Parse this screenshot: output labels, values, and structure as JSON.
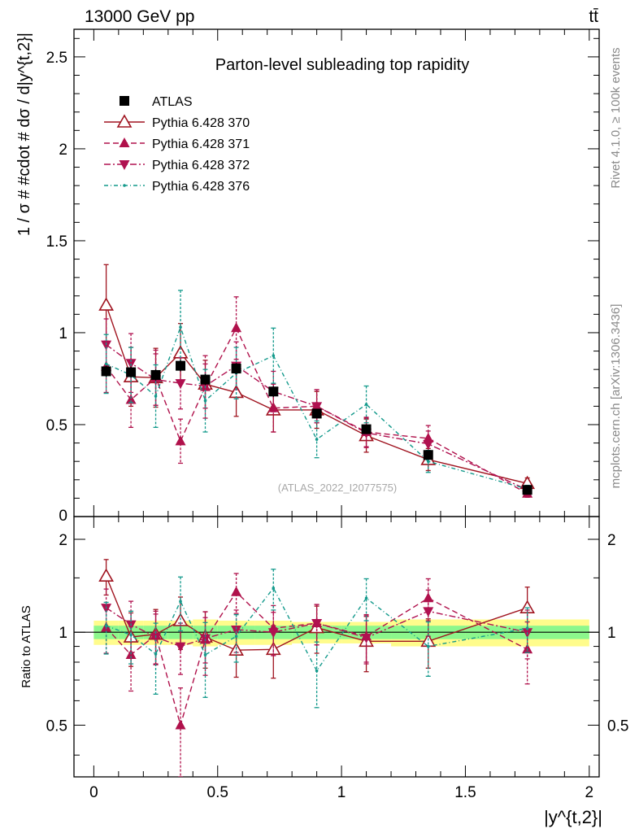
{
  "header": {
    "energy_label": "13000 GeV pp",
    "process_label": "tt̄"
  },
  "side_labels": {
    "rivet": "Rivet 4.1.0, ≥ 100k events",
    "mcplots": "mcplots.cern.ch [arXiv:1306.3436]"
  },
  "chart_data": [
    {
      "type": "scatter",
      "panel": "main",
      "title": "Parton-level subleading top rapidity",
      "ylabel": "1 / σ # #cdot # dσ / d|y^{t,2}|",
      "xlabel": "|y^{t,2}|",
      "xlim": [
        -0.08,
        2.04
      ],
      "ylim": [
        0,
        2.65
      ],
      "yticks": [
        0.5,
        1,
        1.5,
        2,
        2.5
      ],
      "ytick_labels": [
        "0.5",
        "1",
        "1.5",
        "2",
        "2.5"
      ],
      "y_zero_label": "0",
      "analysis_id": "(ATLAS_2022_I2077575)",
      "legend_position": "top-left",
      "x": [
        0.05,
        0.15,
        0.25,
        0.35,
        0.45,
        0.575,
        0.725,
        0.9,
        1.1,
        1.35,
        1.75
      ],
      "bin_edges": [
        0.0,
        0.1,
        0.2,
        0.3,
        0.4,
        0.5,
        0.65,
        0.8,
        1.0,
        1.2,
        1.5,
        2.0
      ],
      "series": [
        {
          "name": "ATLAS",
          "style": "data",
          "color": "#000000",
          "values": [
            0.79,
            0.785,
            0.77,
            0.82,
            0.745,
            0.805,
            0.68,
            0.56,
            0.475,
            0.335,
            0.145
          ],
          "errors": [
            0.03,
            0.03,
            0.03,
            0.03,
            0.03,
            0.03,
            0.03,
            0.025,
            0.025,
            0.02,
            0.015
          ]
        },
        {
          "name": "Pythia 6.428 370",
          "style": "line-open-triangle",
          "color": "#a01420",
          "values": [
            1.15,
            0.76,
            0.755,
            0.89,
            0.72,
            0.675,
            0.58,
            0.58,
            0.44,
            0.31,
            0.18
          ],
          "errors": [
            0.22,
            0.16,
            0.16,
            0.16,
            0.13,
            0.13,
            0.12,
            0.1,
            0.09,
            0.06,
            0.03
          ]
        },
        {
          "name": "Pythia 6.428 371",
          "style": "dashed-filled-triangle",
          "color": "#b0114b",
          "values": [
            0.815,
            0.635,
            0.755,
            0.41,
            0.705,
            1.025,
            0.59,
            0.6,
            0.46,
            0.425,
            0.125
          ],
          "errors": [
            0.14,
            0.15,
            0.15,
            0.12,
            0.17,
            0.17,
            0.13,
            0.09,
            0.08,
            0.07,
            0.02
          ]
        },
        {
          "name": "Pythia 6.428 372",
          "style": "dashdot-down-triangle",
          "color": "#b01150",
          "values": [
            0.935,
            0.835,
            0.745,
            0.725,
            0.71,
            0.82,
            0.68,
            0.6,
            0.455,
            0.395,
            0.145
          ],
          "errors": [
            0.14,
            0.16,
            0.14,
            0.14,
            0.12,
            0.13,
            0.11,
            0.09,
            0.08,
            0.07,
            0.02
          ]
        },
        {
          "name": "Pythia 6.428 376",
          "style": "dashdot-teal",
          "color": "#149a8c",
          "values": [
            0.83,
            0.77,
            0.655,
            1.03,
            0.63,
            0.78,
            0.875,
            0.42,
            0.61,
            0.3,
            0.15
          ],
          "errors": [
            0.16,
            0.15,
            0.17,
            0.2,
            0.17,
            0.14,
            0.15,
            0.1,
            0.1,
            0.06,
            0.02
          ]
        }
      ]
    },
    {
      "type": "scatter",
      "panel": "ratio",
      "ylabel": "Ratio to ATLAS",
      "xlabel": "|y^{t,2}|",
      "xlim": [
        -0.08,
        2.04
      ],
      "ylim": [
        0.34,
        2.37
      ],
      "yticks": [
        0.5,
        1,
        2
      ],
      "ytick_labels": [
        "0.5",
        "1",
        "2"
      ],
      "xticks": [
        0,
        0.5,
        1,
        1.5,
        2
      ],
      "xtick_labels": [
        "0",
        "0.5",
        "1",
        "1.5",
        "2"
      ],
      "x": [
        0.05,
        0.15,
        0.25,
        0.35,
        0.45,
        0.575,
        0.725,
        0.9,
        1.1,
        1.35,
        1.75
      ],
      "bin_edges": [
        0.0,
        0.1,
        0.2,
        0.3,
        0.4,
        0.5,
        0.65,
        0.8,
        1.0,
        1.2,
        1.5,
        2.0
      ],
      "band_stat": [
        0.05,
        0.05,
        0.05,
        0.05,
        0.05,
        0.05,
        0.05,
        0.05,
        0.05,
        0.05,
        0.05
      ],
      "band_total": [
        0.09,
        0.09,
        0.09,
        0.09,
        0.1,
        0.09,
        0.09,
        0.08,
        0.08,
        0.1,
        0.1
      ],
      "series": [
        {
          "name": "Pythia 6.428 370",
          "values": [
            1.52,
            0.965,
            0.985,
            1.09,
            0.965,
            0.875,
            0.88,
            1.035,
            0.935,
            0.935,
            1.2
          ],
          "errors": [
            0.2,
            0.19,
            0.2,
            0.21,
            0.2,
            0.16,
            0.17,
            0.18,
            0.19,
            0.17,
            0.2
          ]
        },
        {
          "name": "Pythia 6.428 371",
          "values": [
            1.035,
            0.845,
            0.98,
            0.5,
            0.945,
            1.35,
            1.03,
            1.07,
            0.97,
            1.29,
            0.88
          ],
          "errors": [
            0.18,
            0.2,
            0.19,
            0.16,
            0.22,
            0.2,
            0.19,
            0.16,
            0.17,
            0.2,
            0.2
          ]
        },
        {
          "name": "Pythia 6.428 372",
          "values": [
            1.2,
            1.06,
            0.965,
            0.9,
            0.955,
            1.02,
            1.0,
            1.07,
            0.96,
            1.17,
            1.0
          ],
          "errors": [
            0.18,
            0.2,
            0.18,
            0.17,
            0.16,
            0.16,
            0.16,
            0.16,
            0.17,
            0.2,
            0.18
          ]
        },
        {
          "name": "Pythia 6.428 376",
          "values": [
            1.05,
            0.98,
            0.85,
            1.26,
            0.845,
            0.97,
            1.39,
            0.75,
            1.29,
            0.9,
            1.03
          ],
          "errors": [
            0.2,
            0.19,
            0.22,
            0.25,
            0.23,
            0.17,
            0.21,
            0.18,
            0.2,
            0.18,
            0.17
          ]
        }
      ]
    }
  ]
}
